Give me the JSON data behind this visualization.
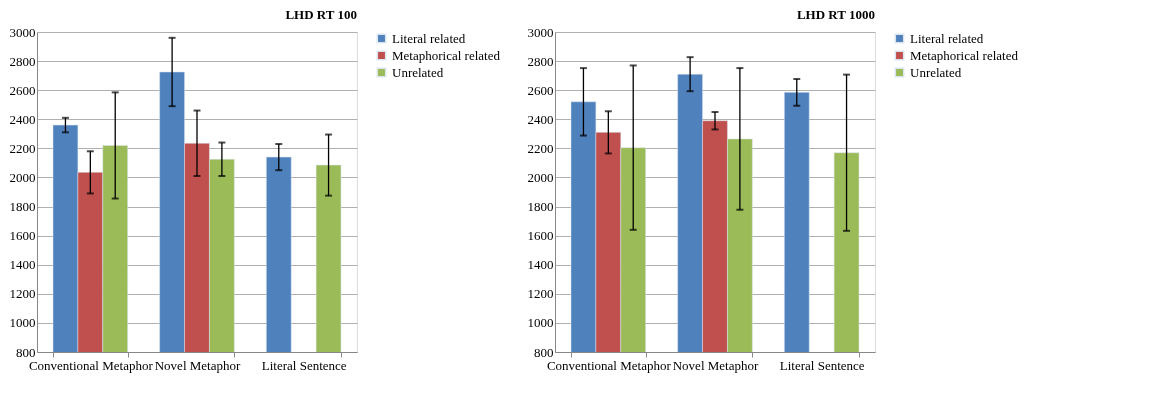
{
  "chart_data": [
    {
      "type": "bar",
      "title": "LHD RT 100",
      "categories": [
        "Conventional Metaphor",
        "Novel Metaphor",
        "Literal Sentence"
      ],
      "ylim": [
        800,
        3000
      ],
      "yticks": [
        800,
        1000,
        1200,
        1400,
        1600,
        1800,
        2000,
        2200,
        2400,
        2600,
        2800,
        3000
      ],
      "grid": "y",
      "legend": "right",
      "series": [
        {
          "name": "Literal related",
          "color": "#4f81bd",
          "values": [
            2360,
            2725,
            2140
          ],
          "errors": [
            50,
            235,
            90
          ]
        },
        {
          "name": "Metaphorical related",
          "color": "#c0504d",
          "values": [
            2035,
            2235,
            null
          ],
          "errors": [
            145,
            225,
            null
          ]
        },
        {
          "name": "Unrelated",
          "color": "#9bbb59",
          "values": [
            2220,
            2125,
            2085
          ],
          "errors": [
            365,
            115,
            210
          ]
        }
      ]
    },
    {
      "type": "bar",
      "title": "LHD RT 1000",
      "categories": [
        "Conventional Metaphor",
        "Novel Metaphor",
        "Literal Sentence"
      ],
      "ylim": [
        800,
        3000
      ],
      "yticks": [
        800,
        1000,
        1200,
        1400,
        1600,
        1800,
        2000,
        2200,
        2400,
        2600,
        2800,
        3000
      ],
      "grid": "y",
      "legend": "right",
      "series": [
        {
          "name": "Literal related",
          "color": "#4f81bd",
          "values": [
            2520,
            2710,
            2585
          ],
          "errors": [
            232,
            117,
            92
          ]
        },
        {
          "name": "Metaphorical related",
          "color": "#c0504d",
          "values": [
            2310,
            2390,
            null
          ],
          "errors": [
            145,
            60,
            null
          ]
        },
        {
          "name": "Unrelated",
          "color": "#9bbb59",
          "values": [
            2205,
            2265,
            2170
          ],
          "errors": [
            565,
            487,
            537
          ]
        }
      ]
    }
  ]
}
